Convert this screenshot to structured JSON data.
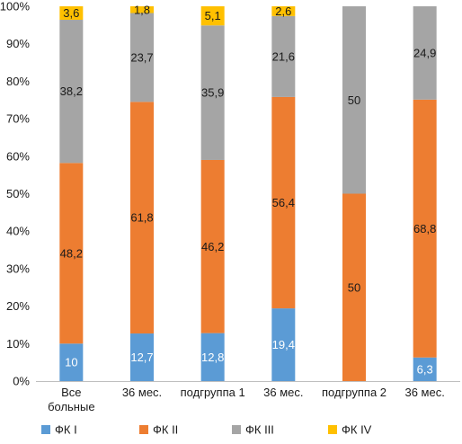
{
  "chart_data": {
    "type": "bar",
    "stacked": true,
    "categories": [
      "Все больные",
      "36 мес.",
      "подгруппа 1",
      "36 мес.",
      "подгруппа 2",
      "36 мес."
    ],
    "category_lines": [
      [
        "Все",
        "больные"
      ],
      [
        "36 мес."
      ],
      [
        "подгруппа 1"
      ],
      [
        "36 мес."
      ],
      [
        "подгруппа 2"
      ],
      [
        "36 мес."
      ]
    ],
    "series": [
      {
        "name": "ФК I",
        "color": "#5b9bd5",
        "values": [
          10,
          12.7,
          12.8,
          19.4,
          0,
          6.3
        ],
        "labels": [
          "10",
          "12,7",
          "12,8",
          "19,4",
          "",
          "6,3"
        ],
        "label_color": "#ffffff"
      },
      {
        "name": "ФК II",
        "color": "#ed7d31",
        "values": [
          48.2,
          61.8,
          46.2,
          56.4,
          50,
          68.8
        ],
        "labels": [
          "48,2",
          "61,8",
          "46,2",
          "56,4",
          "50",
          "68,8"
        ],
        "label_color": "#1a1a1a"
      },
      {
        "name": "ФК III",
        "color": "#a5a5a5",
        "values": [
          38.2,
          23.7,
          35.9,
          21.6,
          50,
          24.9
        ],
        "labels": [
          "38,2",
          "23,7",
          "35,9",
          "21,6",
          "50",
          "24,9"
        ],
        "label_color": "#1a1a1a"
      },
      {
        "name": "ФК IV",
        "color": "#ffc000",
        "values": [
          3.6,
          1.8,
          5.1,
          2.6,
          0,
          0
        ],
        "labels": [
          "3,6",
          "1,8",
          "5,1",
          "2,6",
          "",
          ""
        ],
        "label_color": "#1a1a1a"
      }
    ],
    "y_ticks": [
      "0%",
      "10%",
      "20%",
      "30%",
      "40%",
      "50%",
      "60%",
      "70%",
      "80%",
      "90%",
      "100%"
    ],
    "ylim": [
      0,
      100
    ],
    "grid": false,
    "legend_position": "bottom",
    "title": "",
    "xlabel": "",
    "ylabel": ""
  }
}
